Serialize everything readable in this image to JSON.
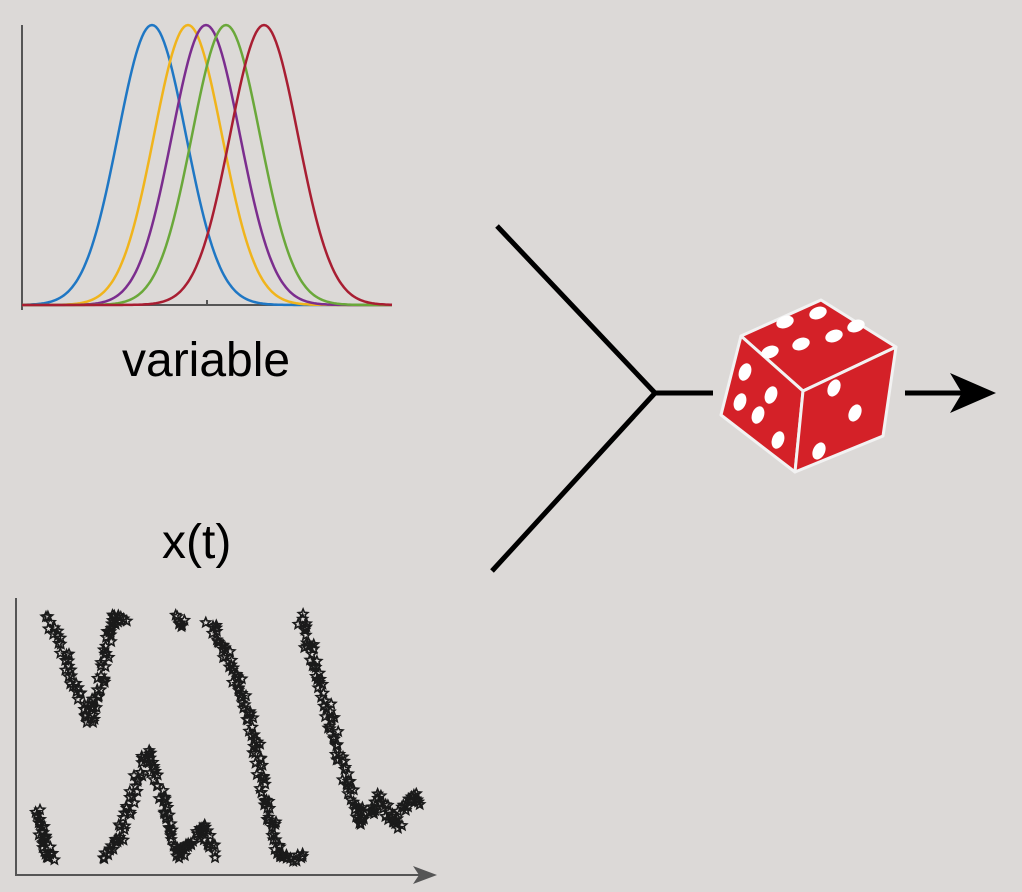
{
  "distribution_panel": {
    "axis_label": "variable",
    "curve_colors": [
      "#1f77c4",
      "#f0b41c",
      "#7b2d8e",
      "#6aa83a",
      "#a81e32"
    ]
  },
  "timeseries_panel": {
    "axis_label": "x(t)",
    "marker": "star",
    "marker_color": "#1a1a1a"
  },
  "combine_node": {
    "shape": "merge-fork"
  },
  "dice": {
    "icon": "dice-icon",
    "color": "#d42128",
    "pip_color": "#ffffff"
  },
  "output_arrow": {
    "icon": "arrow-right-icon",
    "color": "#000000"
  }
}
